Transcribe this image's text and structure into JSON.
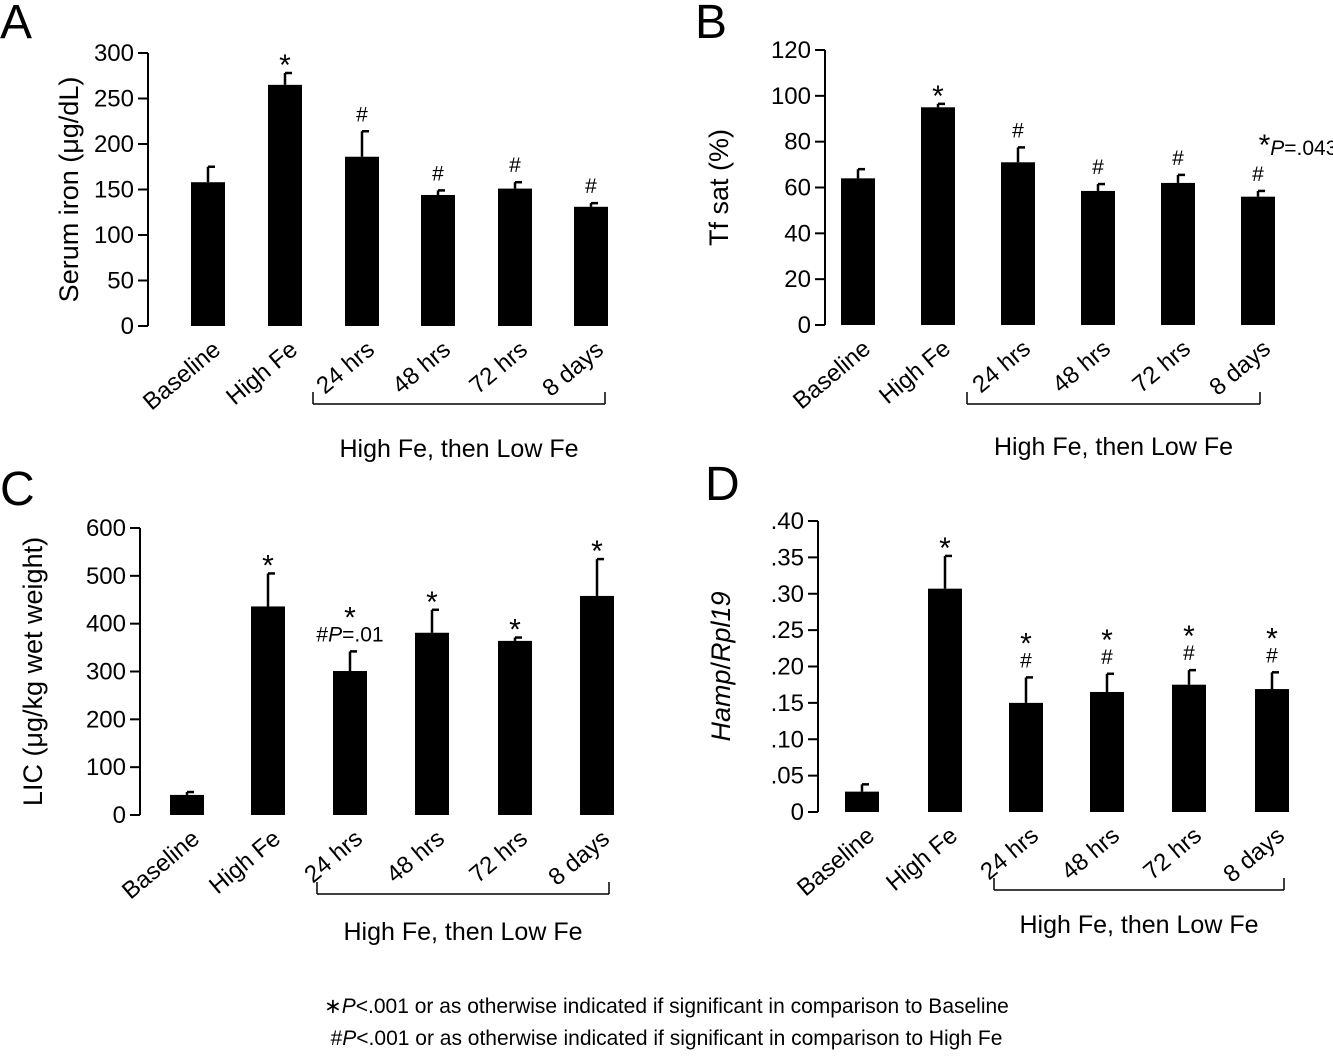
{
  "chart_data": [
    {
      "panel": "A",
      "type": "bar",
      "ylabel": "Serum iron (μg/dL)",
      "ylim": [
        0,
        300
      ],
      "yticks": [
        "0",
        "50",
        "100",
        "150",
        "200",
        "250",
        "300"
      ],
      "categories": [
        "Baseline",
        "High Fe",
        "24 hrs",
        "48 hrs",
        "72 hrs",
        "8 days"
      ],
      "values": [
        158,
        265,
        186,
        144,
        151,
        131
      ],
      "errors": [
        17,
        13,
        28,
        5,
        7,
        4
      ],
      "annotations": [
        [],
        [
          "*"
        ],
        [
          "#"
        ],
        [
          "#"
        ],
        [
          "#"
        ],
        [
          "#"
        ]
      ],
      "group_label": "High Fe, then Low Fe"
    },
    {
      "panel": "B",
      "type": "bar",
      "ylabel": "Tf sat (%)",
      "ylim": [
        0,
        120
      ],
      "yticks": [
        "0",
        "20",
        "40",
        "60",
        "80",
        "100",
        "120"
      ],
      "categories": [
        "Baseline",
        "High Fe",
        "24 hrs",
        "48 hrs",
        "72 hrs",
        "8 days"
      ],
      "values": [
        64,
        95,
        71,
        58.5,
        62,
        56
      ],
      "errors": [
        4,
        1.5,
        6.5,
        3,
        3.5,
        2.5
      ],
      "annotations": [
        [],
        [
          "*"
        ],
        [
          "#"
        ],
        [
          "#"
        ],
        [
          "#"
        ],
        [
          "#",
          "*P=.043"
        ]
      ],
      "group_label": "High Fe, then Low Fe"
    },
    {
      "panel": "C",
      "type": "bar",
      "ylabel": "LIC (μg/kg wet weight)",
      "ylim": [
        0,
        600
      ],
      "yticks": [
        "0",
        "100",
        "200",
        "300",
        "400",
        "500",
        "600"
      ],
      "categories": [
        "Baseline",
        "High Fe",
        "24 hrs",
        "48 hrs",
        "72 hrs",
        "8 days"
      ],
      "values": [
        42,
        436,
        301,
        381,
        364,
        458
      ],
      "errors": [
        6,
        69,
        41,
        48,
        7,
        77
      ],
      "annotations": [
        [],
        [
          "*"
        ],
        [
          "#P=.01",
          "*"
        ],
        [
          "*"
        ],
        [
          "*"
        ],
        [
          "*"
        ]
      ],
      "group_label": "High Fe, then Low Fe"
    },
    {
      "panel": "D",
      "type": "bar",
      "ylabel_parts": [
        "Hamp",
        "/",
        "Rpl19"
      ],
      "ylim": [
        0,
        0.4
      ],
      "yticks": [
        "0",
        ".05",
        ".10",
        ".15",
        ".20",
        ".25",
        ".30",
        ".35",
        ".40"
      ],
      "categories": [
        "Baseline",
        "High Fe",
        "24 hrs",
        "48 hrs",
        "72 hrs",
        "8 days"
      ],
      "values": [
        0.028,
        0.307,
        0.15,
        0.165,
        0.175,
        0.169
      ],
      "errors": [
        0.01,
        0.045,
        0.035,
        0.025,
        0.02,
        0.023
      ],
      "annotations": [
        [],
        [
          "*"
        ],
        [
          "#",
          "*"
        ],
        [
          "#",
          "*"
        ],
        [
          "#",
          "*"
        ],
        [
          "#",
          "*"
        ]
      ],
      "group_label": "High Fe, then Low Fe"
    }
  ],
  "footnotes": {
    "star_symbol": "∗",
    "star_p": "P",
    "star_text": "<.001 or as otherwise indicated if significant in comparison to Baseline",
    "hash_symbol": "#",
    "hash_p": "P",
    "hash_text": "<.001 or as otherwise indicated if significant in comparison to High Fe"
  }
}
